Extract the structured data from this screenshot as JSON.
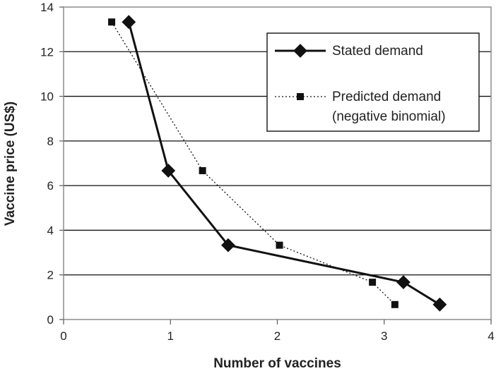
{
  "chart_data": {
    "type": "line",
    "title": "",
    "xlabel": "Number of vaccines",
    "ylabel": "Vaccine price (US$)",
    "xlim": [
      0,
      4
    ],
    "ylim": [
      0,
      14
    ],
    "x_ticks": [
      "0",
      "1",
      "2",
      "3",
      "4"
    ],
    "y_ticks": [
      "0",
      "2",
      "4",
      "6",
      "8",
      "10",
      "12",
      "14"
    ],
    "grid": "horizontal",
    "legend_position": "top-right",
    "series": [
      {
        "name": "Stated demand",
        "style": "solid line with diamond markers",
        "color": "#111111",
        "points": [
          {
            "x": 0.61,
            "y": 13.33
          },
          {
            "x": 0.98,
            "y": 6.67
          },
          {
            "x": 1.54,
            "y": 3.33
          },
          {
            "x": 3.18,
            "y": 1.67
          },
          {
            "x": 3.52,
            "y": 0.67
          }
        ]
      },
      {
        "name": "Predicted demand",
        "name_line2": "(negative binomial)",
        "style": "dotted line with square markers",
        "color": "#111111",
        "points": [
          {
            "x": 0.45,
            "y": 13.33
          },
          {
            "x": 1.3,
            "y": 6.67
          },
          {
            "x": 2.02,
            "y": 3.33
          },
          {
            "x": 2.89,
            "y": 1.67
          },
          {
            "x": 3.1,
            "y": 0.67
          }
        ]
      }
    ]
  }
}
